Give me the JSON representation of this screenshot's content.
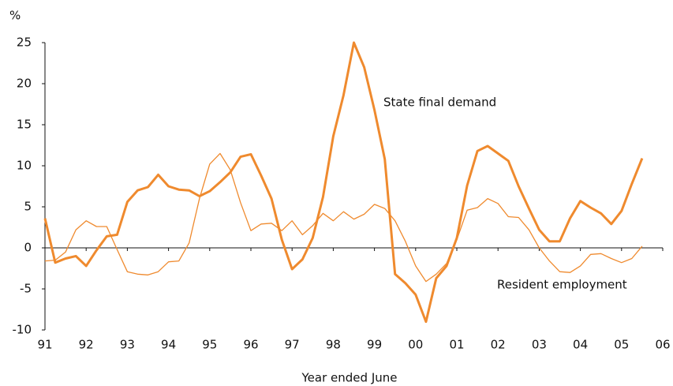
{
  "chart_data": {
    "type": "line",
    "y_unit_label": "%",
    "x_label": "Year ended June",
    "annotations": [
      {
        "text": "State final demand",
        "series": 0
      },
      {
        "text": "Resident employment",
        "series": 1
      }
    ],
    "x": [
      1991,
      1991.25,
      1991.5,
      1991.75,
      1992,
      1992.25,
      1992.5,
      1992.75,
      1993,
      1993.25,
      1993.5,
      1993.75,
      1994,
      1994.25,
      1994.5,
      1994.75,
      1995,
      1995.25,
      1995.5,
      1995.75,
      1996,
      1996.25,
      1996.5,
      1996.75,
      1997,
      1997.25,
      1997.5,
      1997.75,
      1998,
      1998.25,
      1998.5,
      1998.75,
      1999,
      1999.25,
      1999.5,
      1999.75,
      2000,
      2000.25,
      2000.5,
      2000.75,
      2001,
      2001.25,
      2001.5,
      2001.75,
      2002,
      2002.25,
      2002.5,
      2002.75,
      2003,
      2003.25,
      2003.5,
      2003.75,
      2004,
      2004.25,
      2004.5,
      2004.75,
      2005,
      2005.25,
      2005.5
    ],
    "series": [
      {
        "name": "State final demand",
        "color": "#ef8a2e",
        "width": 3,
        "values": [
          3.6,
          -1.8,
          -1.3,
          -1.0,
          -2.2,
          -0.3,
          1.4,
          1.6,
          5.6,
          7.0,
          7.4,
          8.9,
          7.5,
          7.1,
          7.0,
          6.3,
          6.9,
          8.0,
          9.2,
          11.1,
          11.4,
          8.8,
          6.0,
          1.0,
          -2.6,
          -1.4,
          1.2,
          6.2,
          13.6,
          18.6,
          25.0,
          22.0,
          16.8,
          10.8,
          -3.2,
          -4.3,
          -5.7,
          -9.0,
          -3.7,
          -2.2,
          1.2,
          7.6,
          11.8,
          12.4,
          11.5,
          10.6,
          7.5,
          4.8,
          2.2,
          0.8,
          0.8,
          3.6,
          5.7,
          4.9,
          4.2,
          2.9,
          4.5,
          7.8,
          10.9
        ]
      },
      {
        "name": "Resident employment",
        "color": "#ef8a2e",
        "width": 1.3,
        "values": [
          -1.6,
          -1.5,
          -0.5,
          2.2,
          3.3,
          2.6,
          2.6,
          -0.2,
          -2.9,
          -3.2,
          -3.3,
          -2.9,
          -1.7,
          -1.6,
          0.6,
          6.0,
          10.2,
          11.5,
          9.5,
          5.5,
          2.1,
          2.9,
          3.0,
          2.1,
          3.3,
          1.6,
          2.7,
          4.2,
          3.3,
          4.4,
          3.5,
          4.1,
          5.3,
          4.8,
          3.3,
          0.8,
          -2.2,
          -4.1,
          -3.2,
          -1.9,
          1.0,
          4.6,
          4.9,
          6.0,
          5.4,
          3.8,
          3.7,
          2.2,
          0.0,
          -1.6,
          -2.9,
          -3.0,
          -2.2,
          -0.8,
          -0.7,
          -1.3,
          -1.8,
          -1.3,
          0.2
        ]
      }
    ],
    "xlim": [
      1991,
      2006
    ],
    "xticks": [
      {
        "value": 1991,
        "label": "91"
      },
      {
        "value": 1992,
        "label": "92"
      },
      {
        "value": 1993,
        "label": "93"
      },
      {
        "value": 1994,
        "label": "94"
      },
      {
        "value": 1995,
        "label": "95"
      },
      {
        "value": 1996,
        "label": "96"
      },
      {
        "value": 1997,
        "label": "97"
      },
      {
        "value": 1998,
        "label": "98"
      },
      {
        "value": 1999,
        "label": "99"
      },
      {
        "value": 2000,
        "label": "00"
      },
      {
        "value": 2001,
        "label": "01"
      },
      {
        "value": 2002,
        "label": "02"
      },
      {
        "value": 2003,
        "label": "03"
      },
      {
        "value": 2004,
        "label": "04"
      },
      {
        "value": 2005,
        "label": "05"
      },
      {
        "value": 2006,
        "label": "06"
      }
    ],
    "ylim": [
      -10,
      25
    ],
    "yticks": [
      -10,
      -5,
      0,
      5,
      10,
      15,
      20,
      25
    ],
    "grid": false
  }
}
